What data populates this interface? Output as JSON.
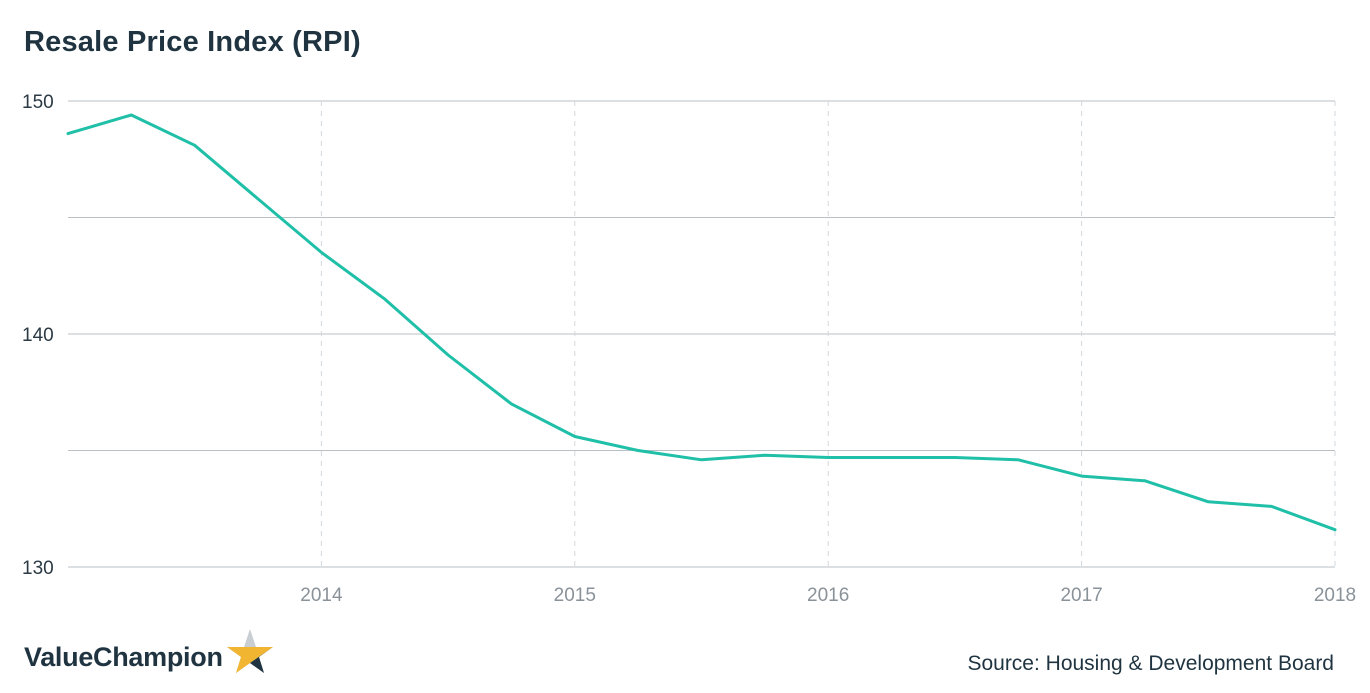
{
  "chart_data": {
    "type": "line",
    "title": "Resale Price Index (RPI)",
    "xlabel": "",
    "ylabel": "",
    "ylim": [
      130,
      150
    ],
    "xlim": [
      2013.0,
      2018.0
    ],
    "y_ticks": [
      130,
      140,
      150
    ],
    "y_gridlines": [
      130,
      135,
      140,
      145,
      150
    ],
    "x_ticks": [
      "2014",
      "2015",
      "2016",
      "2017",
      "2018"
    ],
    "grid": true,
    "series": [
      {
        "color": "#1fbfa8",
        "x": [
          2013.0,
          2013.25,
          2013.5,
          2013.75,
          2014.0,
          2014.25,
          2014.5,
          2014.75,
          2015.0,
          2015.25,
          2015.5,
          2015.75,
          2016.0,
          2016.25,
          2016.5,
          2016.75,
          2017.0,
          2017.25,
          2017.5,
          2017.75,
          2018.0
        ],
        "values": [
          148.6,
          149.4,
          148.1,
          145.8,
          143.5,
          141.5,
          139.1,
          137.0,
          135.6,
          135.0,
          134.6,
          134.8,
          134.7,
          134.7,
          134.7,
          134.6,
          133.9,
          133.7,
          132.8,
          132.6,
          131.6
        ]
      }
    ]
  },
  "brand": {
    "name": "ValueChampion",
    "star_colors": [
      "#f2b531",
      "#1f3440",
      "#c9ced3"
    ]
  },
  "source": "Source: Housing & Development Board"
}
